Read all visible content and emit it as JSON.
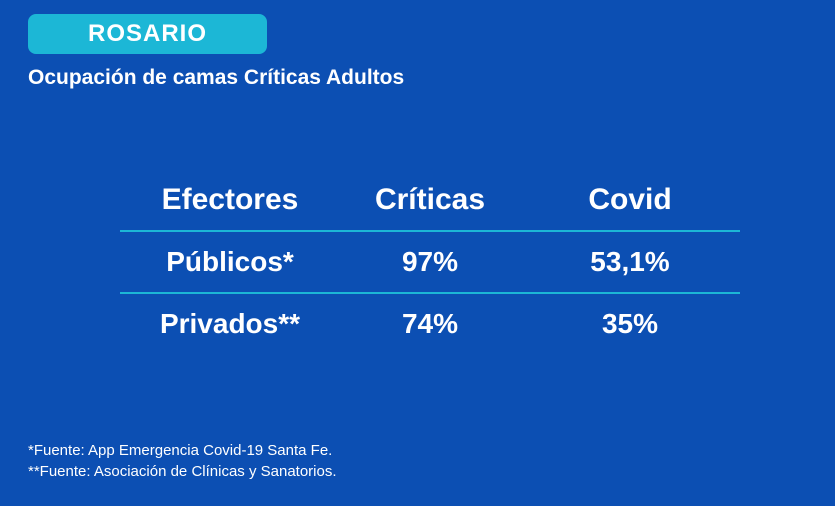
{
  "badge": {
    "text": "ROSARIO"
  },
  "subtitle": "Ocupación de camas Críticas Adultos",
  "table": {
    "headers": {
      "c1": "Efectores",
      "c2": "Críticas",
      "c3": "Covid"
    },
    "rows": [
      {
        "c1": "Públicos*",
        "c2": "97%",
        "c3": "53,1%"
      },
      {
        "c1": "Privados**",
        "c2": "74%",
        "c3": "35%"
      }
    ]
  },
  "footnotes": {
    "line1": "*Fuente: App Emergencia Covid-19 Santa Fe.",
    "line2": "**Fuente: Asociación de Clínicas y Sanatorios."
  },
  "colors": {
    "background": "#0c4fb3",
    "accent": "#1cb7d6",
    "text": "#ffffff"
  }
}
